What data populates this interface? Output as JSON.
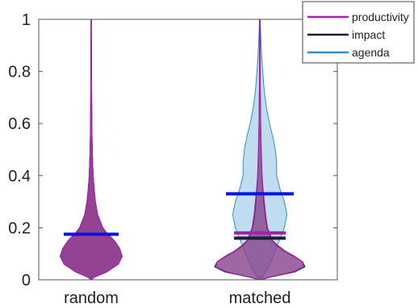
{
  "chart_data": {
    "type": "violin",
    "categories": [
      "random",
      "matched"
    ],
    "ylim": [
      0,
      1
    ],
    "yticks": [
      0,
      0.2,
      0.4,
      0.6,
      0.8,
      1
    ],
    "ytick_labels": [
      "0",
      "0.2",
      "0.4",
      "0.6",
      "0.8",
      "1"
    ],
    "grid": false,
    "legend_position": "top-right",
    "series": [
      {
        "name": "productivity",
        "color": "#b01ab5",
        "fill": "#9a3d92",
        "distributions": {
          "random": {
            "median": 0.175,
            "profile": [
              [
                0,
                0.002
              ],
              [
                0.01,
                0.05
              ],
              [
                0.03,
                0.24
              ],
              [
                0.06,
                0.42
              ],
              [
                0.09,
                0.48
              ],
              [
                0.12,
                0.44
              ],
              [
                0.15,
                0.36
              ],
              [
                0.18,
                0.24
              ],
              [
                0.2,
                0.18
              ],
              [
                0.25,
                0.1
              ],
              [
                0.3,
                0.065
              ],
              [
                0.35,
                0.045
              ],
              [
                0.4,
                0.03
              ],
              [
                0.5,
                0.016
              ],
              [
                0.6,
                0.01
              ],
              [
                0.7,
                0.007
              ],
              [
                0.8,
                0.005
              ],
              [
                0.9,
                0.004
              ],
              [
                1.0,
                0.003
              ]
            ]
          },
          "matched": {
            "median": 0.18,
            "profile": [
              [
                0,
                0.01
              ],
              [
                0.01,
                0.14
              ],
              [
                0.03,
                0.5
              ],
              [
                0.05,
                0.68
              ],
              [
                0.07,
                0.66
              ],
              [
                0.09,
                0.54
              ],
              [
                0.11,
                0.4
              ],
              [
                0.13,
                0.29
              ],
              [
                0.15,
                0.2
              ],
              [
                0.2,
                0.12
              ],
              [
                0.25,
                0.09
              ],
              [
                0.3,
                0.07
              ],
              [
                0.35,
                0.05
              ],
              [
                0.4,
                0.035
              ],
              [
                0.5,
                0.022
              ],
              [
                0.6,
                0.014
              ],
              [
                0.7,
                0.009
              ],
              [
                0.8,
                0.006
              ],
              [
                0.9,
                0.004
              ],
              [
                1.0,
                0.003
              ]
            ]
          }
        }
      },
      {
        "name": "impact",
        "color": "#1a1f36",
        "fill": "#5b4f7d",
        "distributions": {
          "random": {
            "median": 0.175,
            "profile": [
              [
                0,
                0.002
              ],
              [
                0.01,
                0.05
              ],
              [
                0.03,
                0.24
              ],
              [
                0.06,
                0.42
              ],
              [
                0.09,
                0.48
              ],
              [
                0.12,
                0.44
              ],
              [
                0.15,
                0.36
              ],
              [
                0.18,
                0.24
              ],
              [
                0.2,
                0.18
              ],
              [
                0.25,
                0.1
              ],
              [
                0.3,
                0.065
              ],
              [
                0.35,
                0.045
              ],
              [
                0.4,
                0.03
              ],
              [
                0.5,
                0.016
              ],
              [
                0.6,
                0.01
              ],
              [
                0.7,
                0.007
              ],
              [
                0.8,
                0.005
              ],
              [
                0.9,
                0.004
              ],
              [
                1.0,
                0.003
              ]
            ]
          },
          "matched": {
            "median": 0.16,
            "profile": [
              [
                0,
                0.012
              ],
              [
                0.01,
                0.16
              ],
              [
                0.03,
                0.54
              ],
              [
                0.05,
                0.7
              ],
              [
                0.07,
                0.66
              ],
              [
                0.09,
                0.52
              ],
              [
                0.11,
                0.38
              ],
              [
                0.13,
                0.27
              ],
              [
                0.15,
                0.19
              ],
              [
                0.2,
                0.11
              ],
              [
                0.25,
                0.08
              ],
              [
                0.3,
                0.06
              ],
              [
                0.35,
                0.045
              ],
              [
                0.4,
                0.032
              ],
              [
                0.5,
                0.02
              ],
              [
                0.6,
                0.013
              ],
              [
                0.7,
                0.008
              ],
              [
                0.8,
                0.005
              ],
              [
                0.9,
                0.004
              ],
              [
                1.0,
                0.003
              ]
            ]
          }
        }
      },
      {
        "name": "agenda",
        "color": "#2f8fc8",
        "fill": "#a9d2ea",
        "distributions": {
          "random": {
            "median": 0.175,
            "profile": [
              [
                0,
                0.002
              ],
              [
                0.01,
                0.05
              ],
              [
                0.03,
                0.24
              ],
              [
                0.06,
                0.42
              ],
              [
                0.09,
                0.48
              ],
              [
                0.12,
                0.44
              ],
              [
                0.15,
                0.36
              ],
              [
                0.18,
                0.24
              ],
              [
                0.2,
                0.18
              ],
              [
                0.25,
                0.1
              ],
              [
                0.3,
                0.065
              ],
              [
                0.35,
                0.045
              ],
              [
                0.4,
                0.03
              ],
              [
                0.5,
                0.016
              ],
              [
                0.6,
                0.01
              ],
              [
                0.7,
                0.007
              ],
              [
                0.8,
                0.005
              ],
              [
                0.9,
                0.004
              ],
              [
                1.0,
                0.003
              ]
            ]
          },
          "matched": {
            "median": 0.33,
            "profile": [
              [
                0,
                0.01
              ],
              [
                0.02,
                0.06
              ],
              [
                0.05,
                0.13
              ],
              [
                0.1,
                0.22
              ],
              [
                0.15,
                0.3
              ],
              [
                0.2,
                0.38
              ],
              [
                0.25,
                0.42
              ],
              [
                0.3,
                0.38
              ],
              [
                0.35,
                0.31
              ],
              [
                0.4,
                0.26
              ],
              [
                0.45,
                0.26
              ],
              [
                0.5,
                0.24
              ],
              [
                0.55,
                0.2
              ],
              [
                0.6,
                0.15
              ],
              [
                0.65,
                0.11
              ],
              [
                0.7,
                0.08
              ],
              [
                0.75,
                0.06
              ],
              [
                0.8,
                0.045
              ],
              [
                0.85,
                0.03
              ],
              [
                0.9,
                0.02
              ],
              [
                0.95,
                0.012
              ],
              [
                1.0,
                0.004
              ]
            ]
          }
        }
      }
    ]
  }
}
